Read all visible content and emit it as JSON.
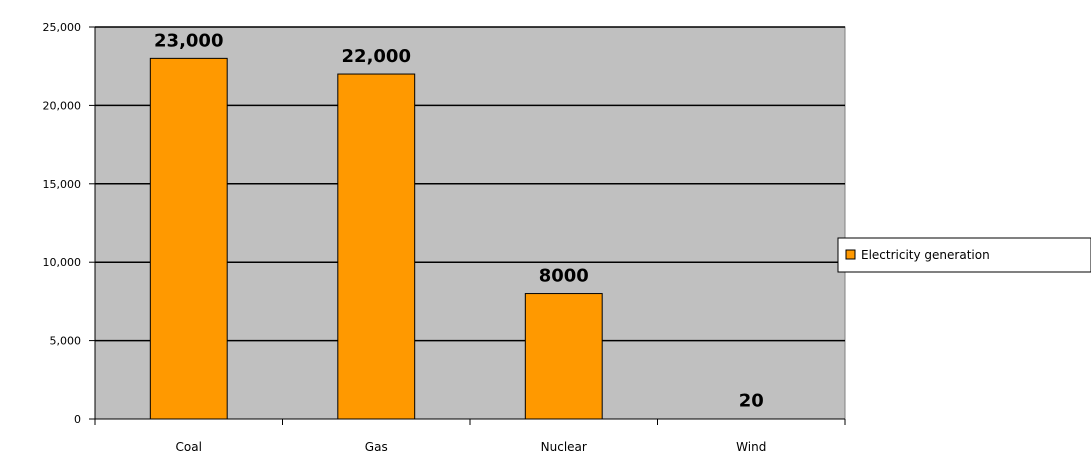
{
  "chart_data": {
    "type": "bar",
    "title": "",
    "xlabel": "",
    "ylabel": "",
    "categories": [
      "Coal",
      "Gas",
      "Nuclear",
      "Wind"
    ],
    "series": [
      {
        "name": "Electricity generation",
        "values": [
          23000,
          22000,
          8000,
          20
        ],
        "data_labels": [
          "23,000",
          "22,000",
          "8000",
          "20"
        ],
        "color": "#FF9900"
      }
    ],
    "ylim": [
      0,
      25000
    ],
    "yticks": [
      0,
      5000,
      10000,
      15000,
      20000,
      25000
    ],
    "ytick_labels": [
      "0",
      "5,000",
      "10,000",
      "15,000",
      "20,000",
      "25,000"
    ],
    "grid": true,
    "legend_position": "right"
  },
  "colors": {
    "plot_background": "#C0C0C0",
    "bar_fill": "#FF9900",
    "bar_outline": "#000000",
    "gridline": "#000000"
  }
}
